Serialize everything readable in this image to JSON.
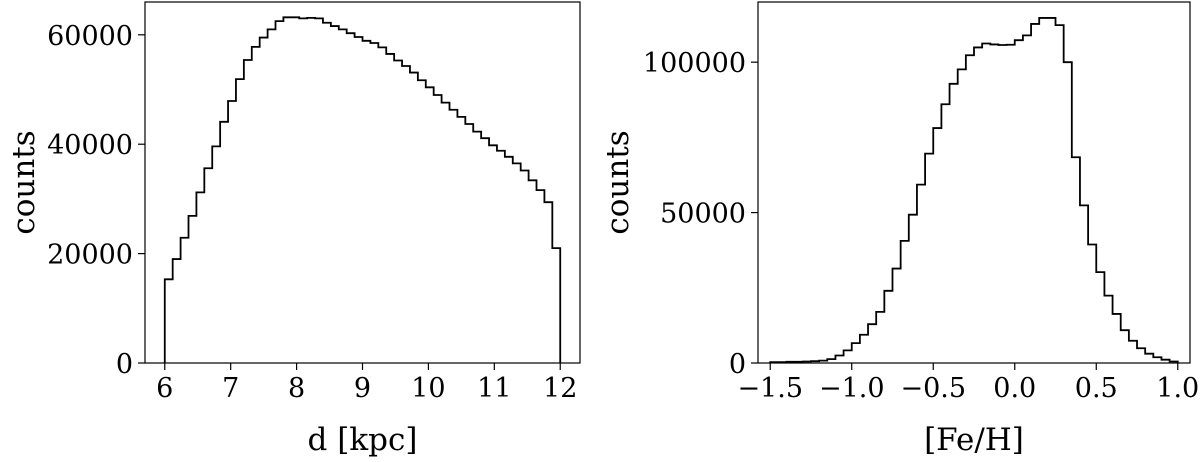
{
  "chart_data": [
    {
      "type": "histogram",
      "title": "",
      "xlabel": "d [kpc]",
      "ylabel": "counts",
      "xlim": [
        5.7,
        12.3
      ],
      "ylim": [
        0,
        66000
      ],
      "xticks": [
        6,
        7,
        8,
        9,
        10,
        11,
        12
      ],
      "xtick_labels": [
        "6",
        "7",
        "8",
        "9",
        "10",
        "11",
        "12"
      ],
      "yticks": [
        0,
        20000,
        40000,
        60000
      ],
      "ytick_labels": [
        "0",
        "20000",
        "40000",
        "60000"
      ],
      "bin_edges": [
        6.0,
        6.12,
        6.24,
        6.36,
        6.48,
        6.6,
        6.72,
        6.84,
        6.96,
        7.08,
        7.2,
        7.32,
        7.44,
        7.56,
        7.68,
        7.8,
        7.92,
        8.04,
        8.16,
        8.28,
        8.4,
        8.52,
        8.64,
        8.76,
        8.88,
        9.0,
        9.12,
        9.24,
        9.36,
        9.48,
        9.6,
        9.72,
        9.84,
        9.96,
        10.08,
        10.2,
        10.32,
        10.44,
        10.56,
        10.68,
        10.8,
        10.92,
        11.04,
        11.16,
        11.28,
        11.4,
        11.52,
        11.64,
        11.76,
        11.88,
        12.0
      ],
      "counts": [
        15300,
        19000,
        22900,
        26900,
        31200,
        35600,
        39600,
        44100,
        47900,
        51900,
        55400,
        57800,
        59500,
        61000,
        62500,
        63200,
        63200,
        63000,
        63100,
        63000,
        62200,
        61600,
        61000,
        60300,
        59600,
        58900,
        58500,
        57700,
        56500,
        55300,
        54300,
        53100,
        51700,
        50400,
        49000,
        47600,
        46300,
        45000,
        43700,
        42300,
        41100,
        39800,
        38800,
        37700,
        36500,
        35200,
        33400,
        31600,
        29400,
        21000
      ],
      "grid": false,
      "legend": "none"
    },
    {
      "type": "histogram",
      "title": "",
      "xlabel": "[Fe/H]",
      "ylabel": "counts",
      "xlim": [
        -1.575,
        1.075
      ],
      "ylim": [
        0,
        120000
      ],
      "xticks": [
        -1.5,
        -1.0,
        -0.5,
        0.0,
        0.5,
        1.0
      ],
      "xtick_labels": [
        "−1.5",
        "−1.0",
        "−0.5",
        "0.0",
        "0.5",
        "1.0"
      ],
      "yticks": [
        0,
        50000,
        100000
      ],
      "ytick_labels": [
        "0",
        "50000",
        "100000"
      ],
      "bin_edges": [
        -1.5,
        -1.45,
        -1.4,
        -1.35,
        -1.3,
        -1.25,
        -1.2,
        -1.15,
        -1.1,
        -1.05,
        -1.0,
        -0.95,
        -0.9,
        -0.85,
        -0.8,
        -0.75,
        -0.7,
        -0.65,
        -0.6,
        -0.55,
        -0.5,
        -0.45,
        -0.4,
        -0.35,
        -0.3,
        -0.25,
        -0.2,
        -0.15,
        -0.1,
        -0.05,
        0.0,
        0.05,
        0.1,
        0.15,
        0.2,
        0.25,
        0.3,
        0.35,
        0.4,
        0.45,
        0.5,
        0.55,
        0.6,
        0.65,
        0.7,
        0.75,
        0.8,
        0.85,
        0.9,
        0.95,
        1.0
      ],
      "counts": [
        300,
        300,
        400,
        400,
        500,
        600,
        800,
        1300,
        2500,
        4200,
        6600,
        9400,
        12900,
        17000,
        24000,
        31400,
        40600,
        49300,
        59300,
        69600,
        78100,
        86000,
        92800,
        97600,
        102300,
        104900,
        106200,
        105900,
        105700,
        105800,
        107300,
        108900,
        112700,
        114700,
        114700,
        112300,
        100000,
        68400,
        52400,
        39400,
        30200,
        22400,
        16300,
        10900,
        7400,
        4900,
        3100,
        1900,
        1100,
        500
      ],
      "grid": false,
      "legend": "none"
    }
  ]
}
